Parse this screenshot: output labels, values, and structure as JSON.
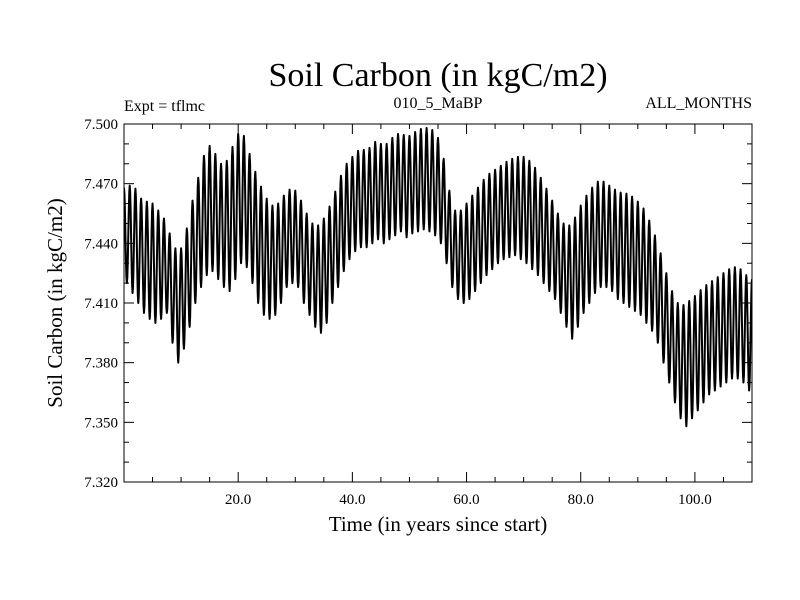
{
  "chart_data": {
    "type": "line",
    "title": "Soil Carbon (in kgC/m2)",
    "subtitle_left": "Expt = tflmc",
    "subtitle_center": "010_5_MaBP",
    "subtitle_right": "ALL_MONTHS",
    "xlabel": "Time (in years since start)",
    "ylabel": "Soil Carbon (in kgC/m2)",
    "xlim": [
      0,
      110
    ],
    "ylim": [
      7.32,
      7.5
    ],
    "xticks": [
      20,
      40,
      60,
      80,
      100
    ],
    "xtick_labels": [
      "20.0",
      "40.0",
      "60.0",
      "80.0",
      "100.0"
    ],
    "yticks": [
      7.32,
      7.35,
      7.38,
      7.41,
      7.44,
      7.47,
      7.5
    ],
    "ytick_labels": [
      "7.320",
      "7.350",
      "7.380",
      "7.410",
      "7.440",
      "7.470",
      "7.500"
    ],
    "series": [
      {
        "name": "Soil Carbon",
        "sampling": "monthly",
        "annual_max": [
          7.468,
          7.47,
          7.465,
          7.46,
          7.462,
          7.458,
          7.455,
          7.45,
          7.44,
          7.435,
          7.44,
          7.455,
          7.468,
          7.478,
          7.49,
          7.488,
          7.482,
          7.478,
          7.485,
          7.492,
          7.498,
          7.49,
          7.48,
          7.472,
          7.465,
          7.46,
          7.458,
          7.462,
          7.466,
          7.468,
          7.465,
          7.458,
          7.452,
          7.448,
          7.45,
          7.455,
          7.462,
          7.47,
          7.478,
          7.482,
          7.485,
          7.488,
          7.486,
          7.49,
          7.492,
          7.488,
          7.492,
          7.494,
          7.496,
          7.493,
          7.495,
          7.497,
          7.498,
          7.498,
          7.496,
          7.49,
          7.475,
          7.458,
          7.455,
          7.458,
          7.462,
          7.466,
          7.47,
          7.474,
          7.476,
          7.478,
          7.48,
          7.482,
          7.483,
          7.484,
          7.483,
          7.48,
          7.476,
          7.47,
          7.465,
          7.458,
          7.452,
          7.448,
          7.45,
          7.456,
          7.462,
          7.466,
          7.47,
          7.472,
          7.47,
          7.468,
          7.466,
          7.465,
          7.465,
          7.462,
          7.46,
          7.455,
          7.448,
          7.44,
          7.43,
          7.42,
          7.412,
          7.408,
          7.41,
          7.412,
          7.415,
          7.418,
          7.42,
          7.422,
          7.424,
          7.426,
          7.428,
          7.428,
          7.426,
          7.422
        ],
        "annual_min": [
          7.42,
          7.415,
          7.41,
          7.405,
          7.402,
          7.4,
          7.402,
          7.405,
          7.39,
          7.38,
          7.387,
          7.398,
          7.41,
          7.418,
          7.424,
          7.426,
          7.422,
          7.418,
          7.416,
          7.422,
          7.43,
          7.428,
          7.42,
          7.41,
          7.404,
          7.402,
          7.404,
          7.41,
          7.418,
          7.42,
          7.418,
          7.41,
          7.404,
          7.398,
          7.395,
          7.4,
          7.41,
          7.418,
          7.426,
          7.432,
          7.436,
          7.438,
          7.438,
          7.44,
          7.442,
          7.44,
          7.442,
          7.444,
          7.446,
          7.443,
          7.445,
          7.446,
          7.447,
          7.446,
          7.444,
          7.44,
          7.43,
          7.418,
          7.412,
          7.41,
          7.412,
          7.416,
          7.42,
          7.424,
          7.427,
          7.43,
          7.432,
          7.433,
          7.434,
          7.432,
          7.43,
          7.427,
          7.424,
          7.42,
          7.416,
          7.412,
          7.405,
          7.398,
          7.392,
          7.398,
          7.405,
          7.41,
          7.415,
          7.418,
          7.418,
          7.416,
          7.412,
          7.41,
          7.408,
          7.406,
          7.404,
          7.4,
          7.396,
          7.39,
          7.38,
          7.37,
          7.36,
          7.352,
          7.348,
          7.352,
          7.356,
          7.36,
          7.364,
          7.366,
          7.368,
          7.37,
          7.372,
          7.372,
          7.37,
          7.366
        ]
      }
    ]
  }
}
